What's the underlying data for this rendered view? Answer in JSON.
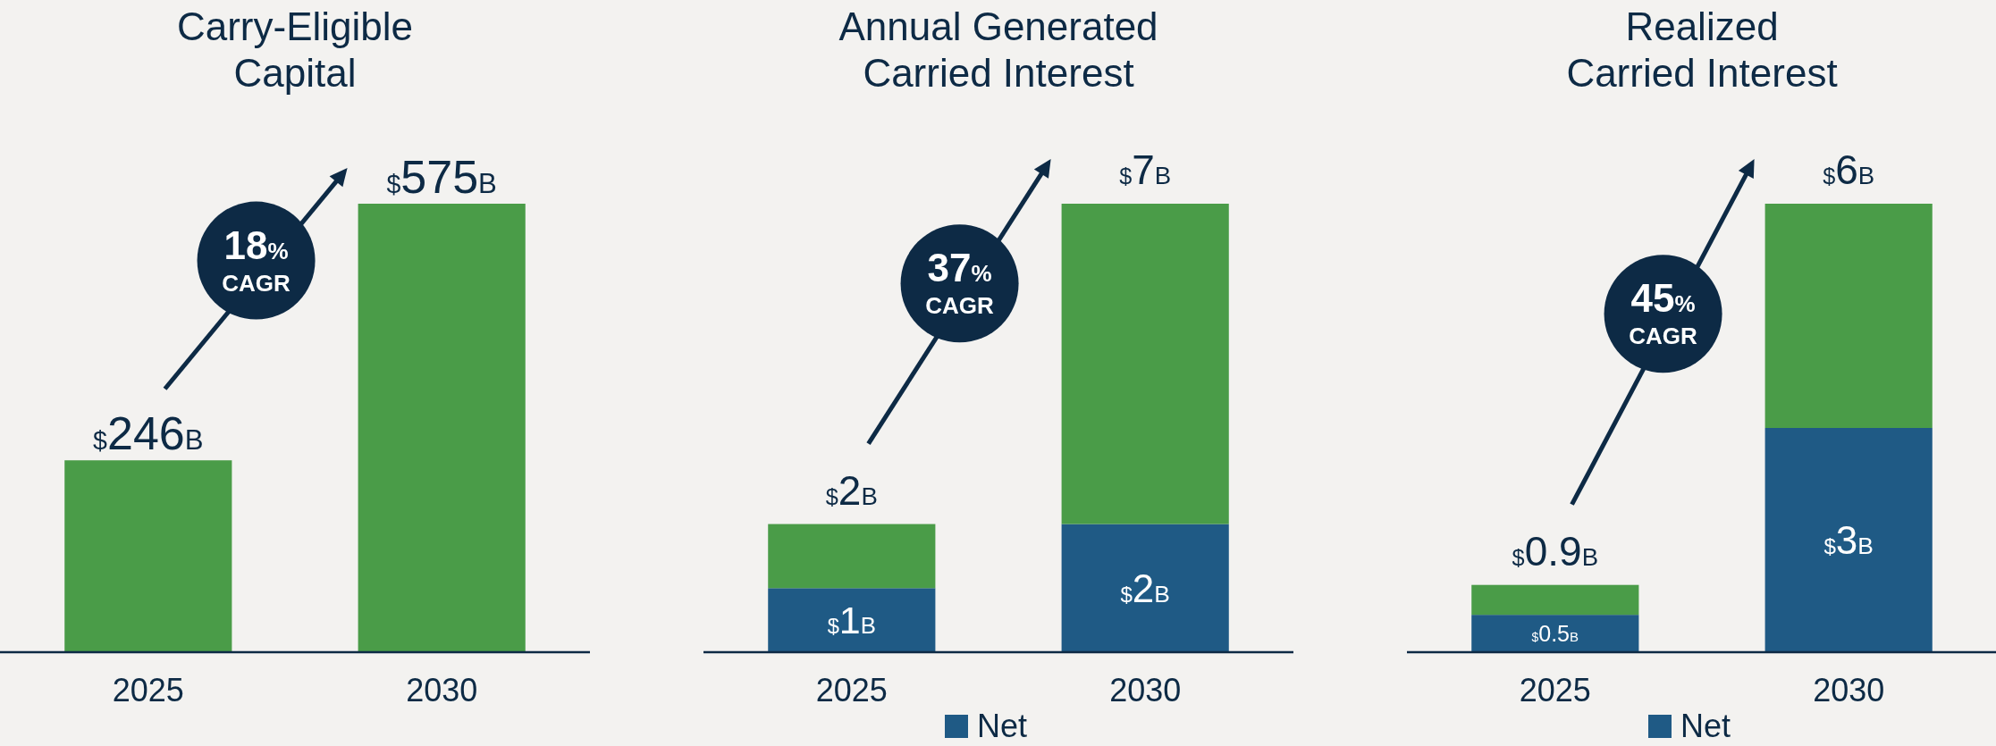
{
  "chart_data": [
    {
      "type": "bar",
      "title": "Carry-Eligible\nCapital",
      "categories": [
        "2025",
        "2030"
      ],
      "series": [
        {
          "color": "#4a9c48",
          "values": [
            246,
            575
          ],
          "value_labels": [
            "$246B",
            "$575B"
          ]
        }
      ],
      "annotations": [
        "18% CAGR"
      ]
    },
    {
      "type": "bar",
      "title": "Annual Generated\nCarried Interest",
      "categories": [
        "2025",
        "2030"
      ],
      "stacked": true,
      "legend": "bottom",
      "series": [
        {
          "name": "Net",
          "color": "#1f5a85",
          "values": [
            1,
            2
          ],
          "value_labels": [
            "$1B",
            "$2B"
          ]
        },
        {
          "color": "#4a9c48",
          "values": [
            1,
            5
          ]
        }
      ],
      "totals": [
        "$2B",
        "$7B"
      ],
      "annotations": [
        "37% CAGR"
      ]
    },
    {
      "type": "bar",
      "title": "Realized\nCarried Interest",
      "categories": [
        "2025",
        "2030"
      ],
      "stacked": true,
      "legend": "bottom",
      "series": [
        {
          "name": "Net",
          "color": "#1f5a85",
          "values": [
            0.5,
            3
          ],
          "value_labels": [
            "$0.5B",
            "$3B"
          ]
        },
        {
          "color": "#4a9c48",
          "values": [
            0.4,
            3
          ]
        }
      ],
      "totals": [
        "$0.9B",
        "$6B"
      ],
      "annotations": [
        "45% CAGR"
      ]
    }
  ]
}
